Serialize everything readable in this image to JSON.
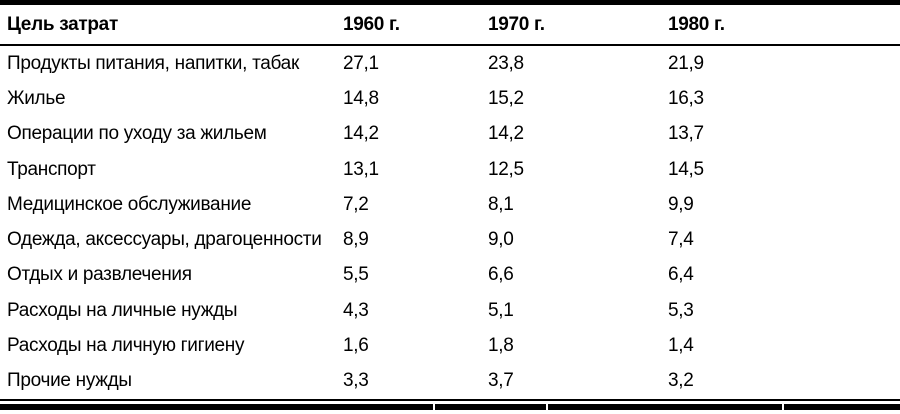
{
  "table": {
    "columns": [
      "Цель затрат",
      "1960 г.",
      "1970 г.",
      "1980 г."
    ],
    "rows": [
      {
        "label": "Продукты питания, напитки, табак",
        "values": [
          "27,1",
          "23,8",
          "21,9"
        ]
      },
      {
        "label": "Жилье",
        "values": [
          "14,8",
          "15,2",
          "16,3"
        ]
      },
      {
        "label": "Операции по уходу за жильем",
        "values": [
          "14,2",
          "14,2",
          "13,7"
        ]
      },
      {
        "label": "Транспорт",
        "values": [
          "13,1",
          "12,5",
          "14,5"
        ]
      },
      {
        "label": "Медицинское обслуживание",
        "values": [
          "7,2",
          "8,1",
          "9,9"
        ]
      },
      {
        "label": "Одежда, аксессуары, драгоценности",
        "values": [
          "8,9",
          "9,0",
          "7,4"
        ]
      },
      {
        "label": "Отдых и развлечения",
        "values": [
          "5,5",
          "6,6",
          "6,4"
        ]
      },
      {
        "label": "Расходы на личные нужды",
        "values": [
          "4,3",
          "5,1",
          "5,3"
        ]
      },
      {
        "label": "Расходы на личную гигиену",
        "values": [
          "1,6",
          "1,8",
          "1,4"
        ]
      },
      {
        "label": "Прочие нужды",
        "values": [
          "3,3",
          "3,7",
          "3,2"
        ]
      }
    ]
  },
  "colors": {
    "text": "#000000",
    "background": "#ffffff",
    "rule": "#000000"
  }
}
